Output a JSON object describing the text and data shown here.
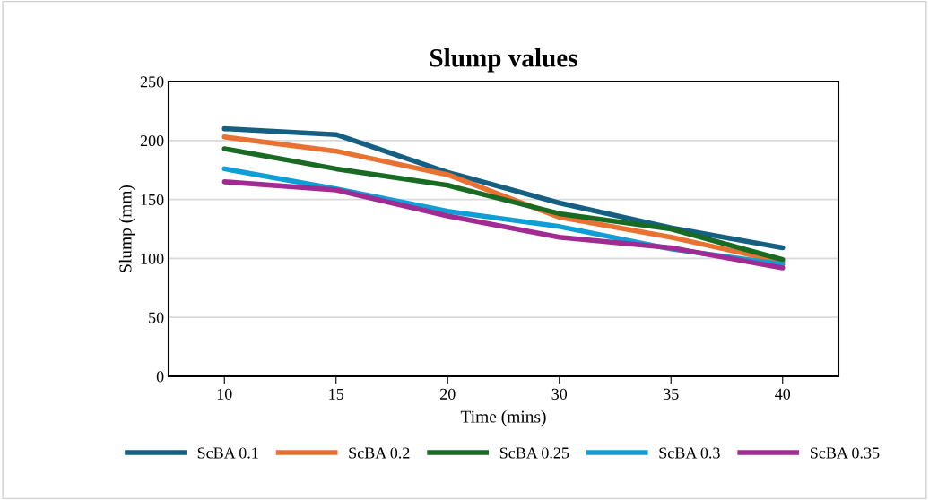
{
  "chart_data": {
    "type": "line",
    "title": "Slump values",
    "xlabel": "Time (mins)",
    "ylabel": "Slump (mm)",
    "categories": [
      "10",
      "15",
      "20",
      "30",
      "35",
      "40"
    ],
    "series": [
      {
        "name": "ScBA 0.1",
        "color": "#156082",
        "values": [
          210,
          205,
          173,
          147,
          126,
          109
        ]
      },
      {
        "name": "ScBA 0.2",
        "color": "#e97132",
        "values": [
          203,
          191,
          171,
          135,
          118,
          97
        ]
      },
      {
        "name": "ScBA 0.25",
        "color": "#196b24",
        "values": [
          193,
          176,
          162,
          138,
          125,
          99
        ]
      },
      {
        "name": "ScBA 0.3",
        "color": "#0f9ed5",
        "values": [
          176,
          159,
          140,
          127,
          108,
          95
        ]
      },
      {
        "name": "ScBA 0.35",
        "color": "#a02b93",
        "values": [
          165,
          158,
          136,
          118,
          109,
          92
        ]
      }
    ],
    "ylim": [
      0,
      250
    ],
    "yticks": [
      0,
      50,
      100,
      150,
      200,
      250
    ],
    "grid": "y",
    "legend": "bottom",
    "marker": "none",
    "line_style": "solid"
  }
}
